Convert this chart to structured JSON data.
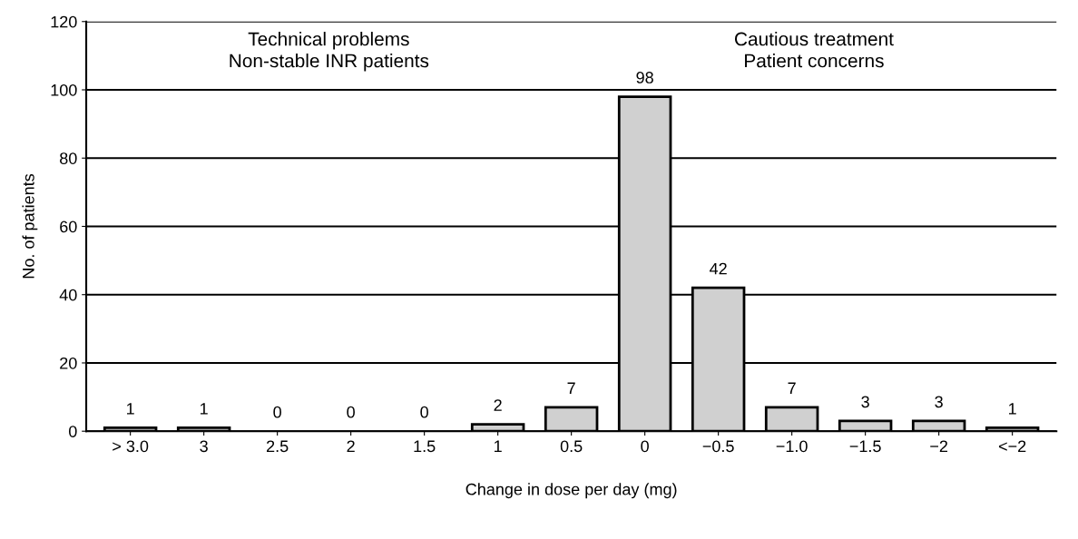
{
  "chart_data": {
    "type": "bar",
    "xlabel": "Change in dose per day (mg)",
    "ylabel": "No. of patients",
    "categories": [
      "> 3.0",
      "3",
      "2.5",
      "2",
      "1.5",
      "1",
      "0.5",
      "0",
      "−0.5",
      "−1.0",
      "−1.5",
      "−2",
      "<−2"
    ],
    "values": [
      1,
      1,
      0,
      0,
      0,
      2,
      7,
      98,
      42,
      7,
      3,
      3,
      1
    ],
    "color": "#d0d0d0",
    "ylim": [
      0,
      120
    ],
    "yticks": [
      0,
      20,
      40,
      60,
      80,
      100,
      120
    ],
    "grid": "y",
    "data_labels": true,
    "annotations": [
      "Technical problems\nNon-stable INR patients",
      "Cautious treatment\nPatient concerns"
    ]
  }
}
